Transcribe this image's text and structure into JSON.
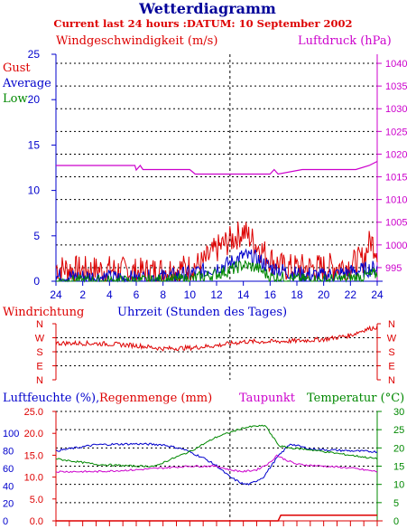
{
  "title": "Wetterdiagramm",
  "subtitle": "Current last 24 hours :DATUM: 10 September 2002",
  "colors": {
    "blue": "#0000cc",
    "red": "#dd0000",
    "magenta": "#cc00cc",
    "green": "#008800",
    "navy": "#000099",
    "axis": "#000000"
  },
  "panel1": {
    "left_label": "Windgeschwindigkeit (m/s)",
    "right_label": "Luftdruck (hPa)",
    "legend": [
      "Gust",
      "Average",
      "Low"
    ],
    "left_ticks": [
      "0",
      "5",
      "10",
      "15",
      "20",
      "25"
    ],
    "right_ticks": [
      "995",
      "1000",
      "1005",
      "1010",
      "1015",
      "1020",
      "1025",
      "1030",
      "1035",
      "1040"
    ],
    "x_ticks": [
      "24",
      "2",
      "4",
      "6",
      "8",
      "10",
      "12",
      "14",
      "16",
      "18",
      "20",
      "22",
      "24"
    ]
  },
  "panel2": {
    "left_label": "Windrichtung",
    "center_label": "Uhrzeit (Stunden des Tages)",
    "dir_ticks": [
      "N",
      "W",
      "S",
      "E",
      "N"
    ]
  },
  "panel3": {
    "label_humidity": "Luftfeuchte (%),",
    "label_rain": "Regenmenge (mm)",
    "label_dew": "Taupunkt",
    "label_temp": "Temperatur (",
    "label_temp_unit": "°C)",
    "humidity_ticks": [
      "0",
      "20",
      "40",
      "60",
      "80",
      "100"
    ],
    "rain_ticks": [
      "0.0",
      "5.0",
      "10.0",
      "15.0",
      "20.0",
      "25.0"
    ],
    "temp_ticks": [
      "0",
      "5",
      "10",
      "15",
      "20",
      "25",
      "30"
    ]
  },
  "chart_data": [
    {
      "type": "line",
      "title": "Windgeschwindigkeit (m/s) / Luftdruck (hPa)",
      "x_range": [
        0,
        24
      ],
      "ylim": [
        0,
        25
      ],
      "y2lim": [
        992,
        1042
      ],
      "series": [
        {
          "name": "Gust",
          "axis": "left",
          "x": [
            0,
            2,
            4,
            6,
            8,
            10,
            11,
            12,
            13,
            13.5,
            14,
            14.5,
            15,
            16,
            17,
            18,
            20,
            22,
            23,
            23.5,
            24
          ],
          "values": [
            1.5,
            1.2,
            1.3,
            1.0,
            1.2,
            1.5,
            2.0,
            3.5,
            4.5,
            5.0,
            5.5,
            4.8,
            4.0,
            2.5,
            1.5,
            1.5,
            1.5,
            1.8,
            2.5,
            4.5,
            3.5
          ]
        },
        {
          "name": "Average",
          "axis": "left",
          "x": [
            0,
            2,
            4,
            6,
            8,
            10,
            12,
            13,
            14,
            15,
            16,
            18,
            20,
            22,
            24
          ],
          "values": [
            0.5,
            0.5,
            0.4,
            0.3,
            0.5,
            0.8,
            1.5,
            2.0,
            2.8,
            2.5,
            1.5,
            0.8,
            0.6,
            1.0,
            1.5
          ]
        },
        {
          "name": "Low",
          "axis": "left",
          "x": [
            0,
            2,
            4,
            6,
            8,
            10,
            12,
            13,
            14,
            15,
            16,
            18,
            20,
            22,
            24
          ],
          "values": [
            0.0,
            0.0,
            0.0,
            0.0,
            0.1,
            0.2,
            0.8,
            1.2,
            1.8,
            1.5,
            0.5,
            0.2,
            0.1,
            0.3,
            0.8
          ]
        },
        {
          "name": "Luftdruck",
          "axis": "right",
          "x": [
            0,
            5.9,
            6.0,
            6.3,
            6.5,
            10,
            10.4,
            13,
            16,
            16.3,
            16.6,
            18.4,
            22.4,
            23.4,
            24
          ],
          "values": [
            1017.5,
            1017.5,
            1016.5,
            1017.5,
            1016.6,
            1016.6,
            1015.6,
            1015.6,
            1015.6,
            1016.6,
            1015.6,
            1016.6,
            1016.6,
            1017.5,
            1018.4
          ]
        }
      ]
    },
    {
      "type": "line",
      "title": "Windrichtung",
      "x_range": [
        0,
        24
      ],
      "y_categories": [
        "N",
        "W",
        "S",
        "E",
        "N"
      ],
      "series": [
        {
          "name": "Windrichtung",
          "x": [
            0,
            2,
            4,
            6,
            8,
            10,
            12,
            14,
            16,
            18,
            20,
            22,
            23,
            24
          ],
          "values": [
            235,
            235,
            230,
            220,
            200,
            205,
            220,
            245,
            245,
            250,
            260,
            285,
            320,
            340
          ]
        }
      ]
    },
    {
      "type": "line",
      "title": "Luftfeuchte (%), Regenmenge (mm), Taupunkt, Temperatur (°C)",
      "x_range": [
        0,
        24
      ],
      "ylim": [
        0,
        25
      ],
      "series": [
        {
          "name": "Luftfeuchte (%)",
          "axis": "humidity",
          "x": [
            0,
            3,
            6,
            8,
            9.5,
            11,
            12,
            13,
            14,
            14.5,
            15.5,
            16.5,
            17.5,
            19,
            22,
            24
          ],
          "values": [
            80,
            87,
            88,
            87,
            82,
            72,
            63,
            50,
            42,
            42,
            50,
            72,
            88,
            82,
            80,
            79
          ]
        },
        {
          "name": "Regenmenge (mm)",
          "axis": "rain",
          "x": [
            0,
            16.6,
            16.8,
            24
          ],
          "values": [
            0.0,
            0.0,
            1.3,
            1.3
          ]
        },
        {
          "name": "Taupunkt",
          "axis": "temp",
          "x": [
            0,
            3,
            6,
            8,
            10,
            12,
            13,
            14,
            15,
            16,
            16.5,
            17,
            18,
            20,
            22,
            24
          ],
          "values": [
            13.5,
            13.5,
            14.0,
            14.5,
            15.0,
            15.0,
            14.0,
            13.5,
            14.0,
            16.0,
            18.0,
            17.0,
            15.5,
            15.0,
            14.5,
            13.5
          ]
        },
        {
          "name": "Temperatur (°C)",
          "axis": "temp",
          "x": [
            0,
            3,
            6,
            7.5,
            8,
            10,
            12,
            14,
            15,
            15.7,
            16,
            16.7,
            17.5,
            19,
            22,
            24
          ],
          "values": [
            17.0,
            15.5,
            15.0,
            15.0,
            16.0,
            19.0,
            23.0,
            25.5,
            26.0,
            26.0,
            24.0,
            20.5,
            20.0,
            19.5,
            18.0,
            17.0
          ]
        }
      ]
    }
  ]
}
